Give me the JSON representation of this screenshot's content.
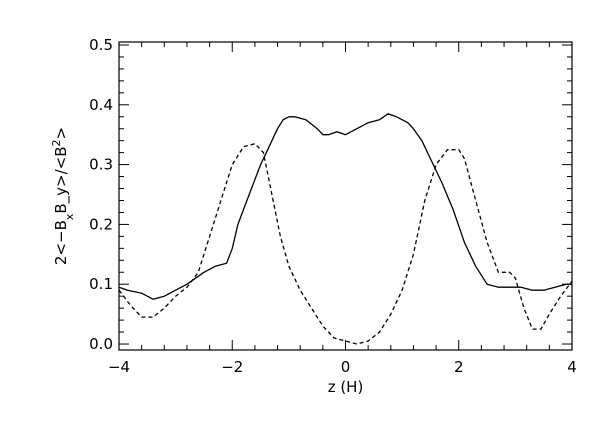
{
  "chart_data": {
    "type": "line",
    "title": "",
    "xlabel": "z (H)",
    "ylabel": "2<−B_xB_y>/<B^2>",
    "xlim": [
      -4,
      4
    ],
    "ylim": [
      -0.01,
      0.505
    ],
    "grid": false,
    "legend": "none",
    "x_ticks": [
      -4,
      -2,
      0,
      2,
      4
    ],
    "x_tick_labels": [
      "−4",
      "−2",
      "0",
      "2",
      "4"
    ],
    "y_ticks": [
      0.0,
      0.1,
      0.2,
      0.3,
      0.4,
      0.5
    ],
    "y_tick_labels": [
      "0.0",
      "0.1",
      "0.2",
      "0.3",
      "0.4",
      "0.5"
    ],
    "series": [
      {
        "style": "solid",
        "x": [
          -4.0,
          -3.85,
          -3.6,
          -3.4,
          -3.2,
          -3.0,
          -2.8,
          -2.5,
          -2.3,
          -2.1,
          -2.0,
          -1.9,
          -1.7,
          -1.5,
          -1.35,
          -1.2,
          -1.1,
          -1.0,
          -0.9,
          -0.7,
          -0.5,
          -0.4,
          -0.3,
          -0.15,
          0.0,
          0.2,
          0.4,
          0.6,
          0.75,
          0.9,
          1.1,
          1.2,
          1.35,
          1.5,
          1.7,
          1.9,
          2.1,
          2.3,
          2.5,
          2.7,
          2.9,
          3.1,
          3.3,
          3.5,
          3.7,
          3.9,
          4.0
        ],
        "y": [
          0.095,
          0.09,
          0.085,
          0.075,
          0.08,
          0.09,
          0.1,
          0.12,
          0.13,
          0.135,
          0.16,
          0.2,
          0.25,
          0.3,
          0.33,
          0.36,
          0.375,
          0.38,
          0.38,
          0.375,
          0.36,
          0.35,
          0.35,
          0.355,
          0.35,
          0.36,
          0.37,
          0.375,
          0.385,
          0.38,
          0.37,
          0.36,
          0.34,
          0.31,
          0.27,
          0.225,
          0.17,
          0.13,
          0.1,
          0.095,
          0.095,
          0.095,
          0.09,
          0.09,
          0.095,
          0.1,
          0.1
        ]
      },
      {
        "style": "dashed",
        "x": [
          -4.0,
          -3.8,
          -3.6,
          -3.4,
          -3.2,
          -3.0,
          -2.8,
          -2.6,
          -2.4,
          -2.2,
          -2.0,
          -1.8,
          -1.6,
          -1.45,
          -1.3,
          -1.15,
          -1.0,
          -0.8,
          -0.6,
          -0.4,
          -0.2,
          0.0,
          0.2,
          0.4,
          0.6,
          0.8,
          1.0,
          1.2,
          1.4,
          1.6,
          1.8,
          2.0,
          2.1,
          2.3,
          2.5,
          2.7,
          2.9,
          3.0,
          3.15,
          3.3,
          3.45,
          3.6,
          3.8,
          4.0
        ],
        "y": [
          0.09,
          0.065,
          0.045,
          0.045,
          0.06,
          0.08,
          0.095,
          0.12,
          0.18,
          0.24,
          0.3,
          0.33,
          0.335,
          0.32,
          0.25,
          0.18,
          0.13,
          0.09,
          0.06,
          0.03,
          0.01,
          0.005,
          0.0,
          0.005,
          0.02,
          0.05,
          0.09,
          0.15,
          0.24,
          0.3,
          0.325,
          0.325,
          0.31,
          0.24,
          0.17,
          0.12,
          0.12,
          0.11,
          0.06,
          0.025,
          0.025,
          0.05,
          0.08,
          0.105
        ]
      }
    ]
  }
}
